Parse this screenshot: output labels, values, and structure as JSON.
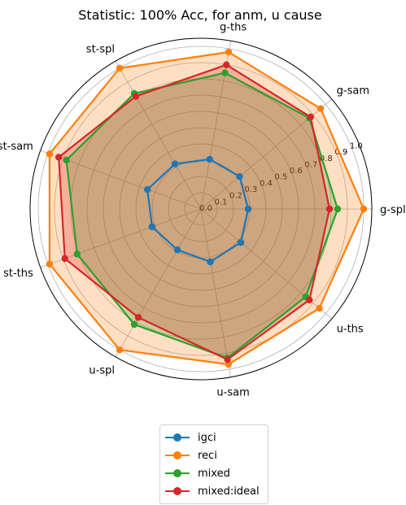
{
  "chart_data": {
    "type": "radar",
    "title": "Statistic: 100% Acc, for anm, u cause",
    "axes": [
      "g-spl",
      "g-sam",
      "g-ths",
      "st-spl",
      "st-sam",
      "st-ths",
      "u-spl",
      "u-sam",
      "u-ths"
    ],
    "radial_ticks": [
      "0.0",
      "0.1",
      "0.2",
      "0.3",
      "0.4",
      "0.5",
      "0.6",
      "0.7",
      "0.8",
      "0.9",
      "1.0"
    ],
    "rlim": [
      0,
      1.05
    ],
    "grid": true,
    "legend_position": "bottom-center",
    "series": [
      {
        "name": "igci",
        "color": "#1f77b4",
        "fill": false,
        "values": [
          0.29,
          0.31,
          0.31,
          0.32,
          0.35,
          0.32,
          0.29,
          0.33,
          0.32
        ]
      },
      {
        "name": "reci",
        "color": "#ff7f0e",
        "fill": true,
        "values": [
          1.0,
          0.96,
          0.98,
          1.0,
          0.99,
          0.99,
          1.0,
          0.97,
          0.95
        ]
      },
      {
        "name": "mixed",
        "color": "#2ca02c",
        "fill": true,
        "values": [
          0.84,
          0.87,
          0.85,
          0.82,
          0.88,
          0.81,
          0.82,
          0.93,
          0.84
        ]
      },
      {
        "name": "mixed:ideal",
        "color": "#d62728",
        "fill": true,
        "values": [
          0.79,
          0.88,
          0.9,
          0.8,
          0.93,
          0.89,
          0.77,
          0.94,
          0.87
        ]
      }
    ]
  }
}
